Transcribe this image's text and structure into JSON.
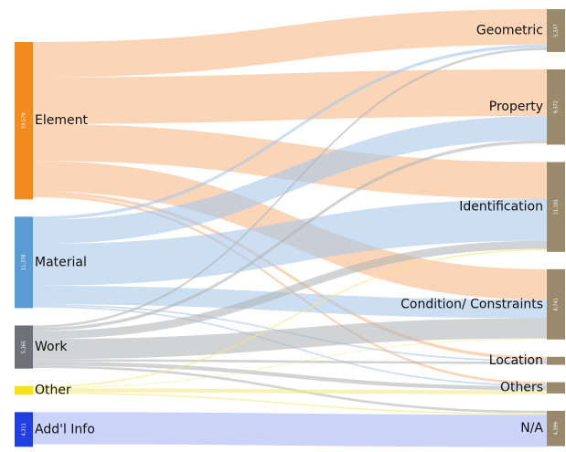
{
  "chart_data": {
    "type": "sankey",
    "nodes": [
      {
        "name": "Element",
        "value": 19579,
        "value_label": "19,579",
        "column": 0,
        "color": "#f28a1e",
        "link_color": "#f7b987"
      },
      {
        "name": "Material",
        "value": 11378,
        "value_label": "11,378",
        "column": 0,
        "color": "#5b9bd5",
        "link_color": "#a9c8ea"
      },
      {
        "name": "Work",
        "value": 5365,
        "value_label": "5,365",
        "column": 0,
        "color": "#6e7178",
        "link_color": "#b3b5b8"
      },
      {
        "name": "Other",
        "value": 1100,
        "column": 0,
        "color": "#f7e21b",
        "link_color": "#f5ea86"
      },
      {
        "name": "Add'l Info",
        "value": 4311,
        "value_label": "4,311",
        "column": 0,
        "color": "#1f3fe0",
        "link_color": "#a9b6f3"
      },
      {
        "name": "Geometric",
        "value": 5337,
        "value_label": "5,337",
        "column": 1,
        "color": "#998a6c"
      },
      {
        "name": "Property",
        "value": 9372,
        "value_label": "9,372",
        "column": 1,
        "color": "#998a6c"
      },
      {
        "name": "Identification",
        "value": 11181,
        "value_label": "11,181",
        "column": 1,
        "color": "#998a6c"
      },
      {
        "name": "Condition/ Constraints",
        "value": 8741,
        "value_label": "8,741",
        "column": 1,
        "color": "#998a6c"
      },
      {
        "name": "Location",
        "value": 1000,
        "column": 1,
        "color": "#998a6c"
      },
      {
        "name": "Others",
        "value": 1400,
        "column": 1,
        "color": "#998a6c"
      },
      {
        "name": "N/A",
        "value": 4399,
        "value_label": "4,399",
        "column": 1,
        "color": "#998a6c"
      }
    ],
    "links": [
      {
        "source": 0,
        "target": 5,
        "value": 4400
      },
      {
        "source": 0,
        "target": 6,
        "value": 5800
      },
      {
        "source": 0,
        "target": 7,
        "value": 4600
      },
      {
        "source": 0,
        "target": 8,
        "value": 3800
      },
      {
        "source": 0,
        "target": 9,
        "value": 400
      },
      {
        "source": 0,
        "target": 10,
        "value": 300
      },
      {
        "source": 1,
        "target": 5,
        "value": 400
      },
      {
        "source": 1,
        "target": 6,
        "value": 3000
      },
      {
        "source": 1,
        "target": 7,
        "value": 5200
      },
      {
        "source": 1,
        "target": 8,
        "value": 2300
      },
      {
        "source": 1,
        "target": 9,
        "value": 200
      },
      {
        "source": 1,
        "target": 10,
        "value": 200
      },
      {
        "source": 2,
        "target": 5,
        "value": 300
      },
      {
        "source": 2,
        "target": 6,
        "value": 400
      },
      {
        "source": 2,
        "target": 7,
        "value": 1000
      },
      {
        "source": 2,
        "target": 8,
        "value": 2500
      },
      {
        "source": 2,
        "target": 9,
        "value": 300
      },
      {
        "source": 2,
        "target": 10,
        "value": 500
      },
      {
        "source": 2,
        "target": 11,
        "value": 300
      },
      {
        "source": 3,
        "target": 7,
        "value": 200
      },
      {
        "source": 3,
        "target": 8,
        "value": 100
      },
      {
        "source": 3,
        "target": 10,
        "value": 500
      },
      {
        "source": 3,
        "target": 11,
        "value": 200
      },
      {
        "source": 4,
        "target": 11,
        "value": 4000
      }
    ]
  }
}
